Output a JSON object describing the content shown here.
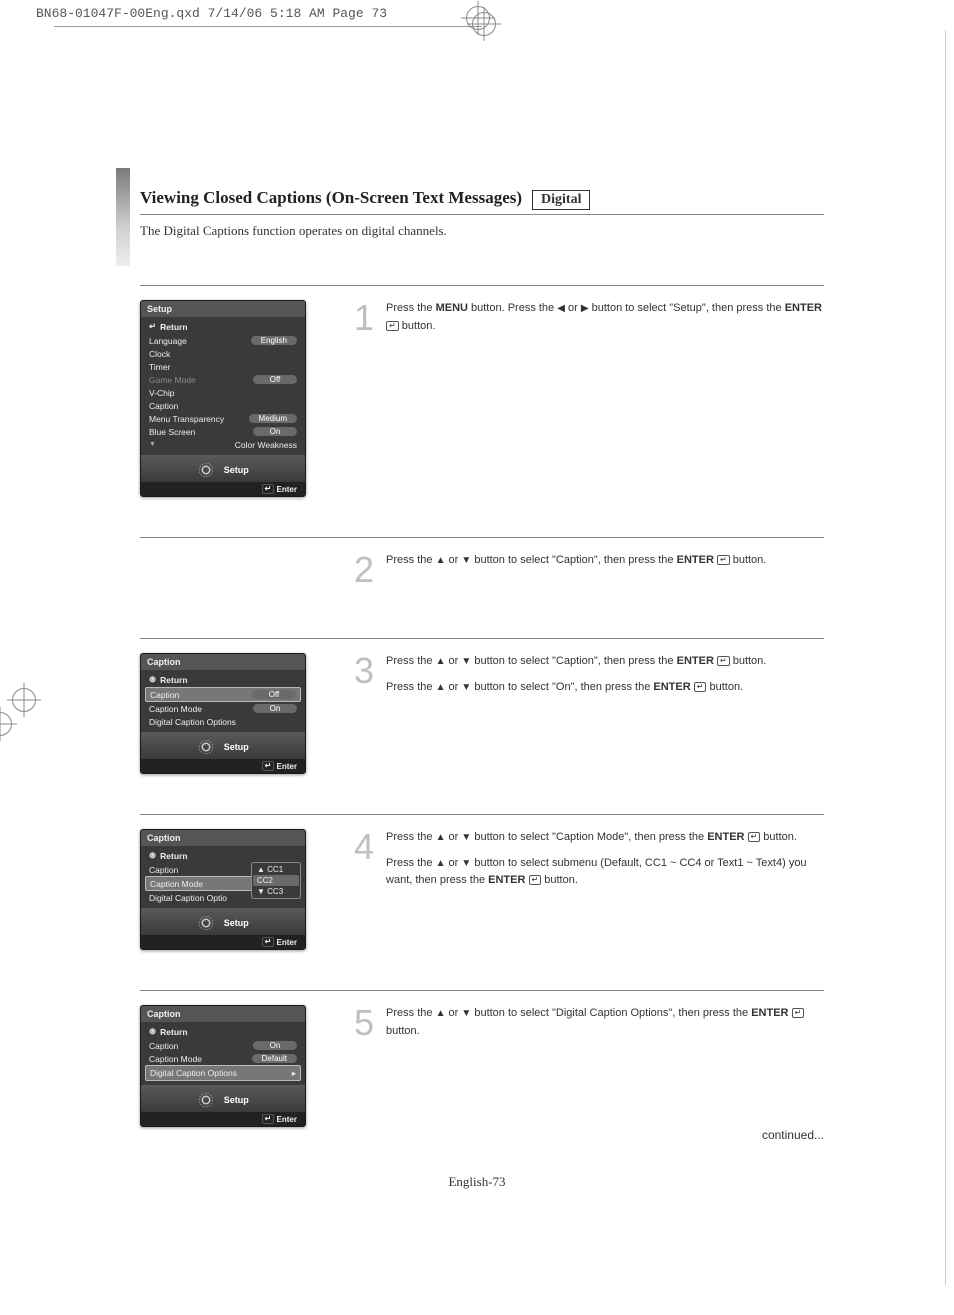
{
  "crop": {
    "header": "BN68-01047F-00Eng.qxd  7/14/06  5:18 AM  Page 73"
  },
  "title": {
    "main": "Viewing Closed Captions (On-Screen Text Messages)",
    "badge": "Digital",
    "sub": "The Digital Captions function operates on digital channels."
  },
  "osd1": {
    "title": "Setup",
    "return": "Return",
    "rows": [
      {
        "label": "Language",
        "value": "English",
        "pill": true
      },
      {
        "label": "Clock",
        "value": ""
      },
      {
        "label": "Timer",
        "value": ""
      },
      {
        "label": "Game Mode",
        "value": "Off",
        "pill": true,
        "dim": true
      },
      {
        "label": "V-Chip",
        "value": ""
      },
      {
        "label": "Caption",
        "value": ""
      },
      {
        "label": "Menu Transparency",
        "value": "Medium",
        "pill": true
      },
      {
        "label": "Blue Screen",
        "value": "On",
        "pill": true
      },
      {
        "label": "Color Weakness",
        "value": "",
        "more": true
      }
    ],
    "footer": "Setup",
    "enter": "Enter"
  },
  "osd2": {
    "title": "Caption",
    "return": "Return",
    "rows": [
      {
        "label": "Caption",
        "value": "Off",
        "pill": true,
        "highlight": true
      },
      {
        "label": "Caption Mode",
        "value": "On",
        "pill": true
      },
      {
        "label": "Digital Caption Options",
        "value": ""
      }
    ],
    "footer": "Setup",
    "enter": "Enter"
  },
  "osd3": {
    "title": "Caption",
    "return": "Return",
    "rows": [
      {
        "label": "Caption",
        "value": ""
      },
      {
        "label": "Caption Mode",
        "value": "",
        "highlight": true
      },
      {
        "label": "Digital Caption Optio",
        "value": ""
      }
    ],
    "dropdown": [
      "▲ CC1",
      "CC2",
      "▼ CC3"
    ],
    "dropdown_sel": 1,
    "footer": "Setup",
    "enter": "Enter"
  },
  "osd4": {
    "title": "Caption",
    "return": "Return",
    "rows": [
      {
        "label": "Caption",
        "value": "On",
        "pill": true
      },
      {
        "label": "Caption Mode",
        "value": "Default",
        "pill": true
      },
      {
        "label": "Digital Caption Options",
        "value": "▸",
        "highlight": true
      }
    ],
    "footer": "Setup",
    "enter": "Enter"
  },
  "steps": {
    "s1": {
      "n": "1",
      "t1a": "Press the ",
      "t1b": "MENU",
      "t1c": " button. Press the ",
      "t1d": " or ",
      "t1e": " button to select \"Setup\", then press  the ",
      "t1f": "ENTER",
      "t1g": " button."
    },
    "s2": {
      "n": "2",
      "t1a": "Press the ",
      "t1b": " or ",
      "t1c": " button to select \"Caption\", then press the ",
      "t1d": "ENTER",
      "t1e": " button."
    },
    "s3": {
      "n": "3",
      "t1a": "Press the ",
      "t1b": " or ",
      "t1c": " button to select \"Caption\", then press the ",
      "t1d": "ENTER",
      "t1e": " button.",
      "t2a": "Press the ",
      "t2b": " or ",
      "t2c": " button to select \"On\", then press the ",
      "t2d": "ENTER",
      "t2e": " button."
    },
    "s4": {
      "n": "4",
      "t1a": "Press the ",
      "t1b": " or ",
      "t1c": "  button to select \"Caption Mode\", then press the ",
      "t1d": "ENTER",
      "t1e": " button.",
      "t2a": "Press the ",
      "t2b": " or ",
      "t2c": " button to select submenu (Default, CC1 ~ CC4 or Text1 ~ Text4) you want, then press the ",
      "t2d": "ENTER",
      "t2e": " button."
    },
    "s5": {
      "n": "5",
      "t1a": "Press the ",
      "t1b": " or ",
      "t1c": " button to select \"Digital Caption Options\", then press the ",
      "t1d": "ENTER",
      "t1e": " button."
    }
  },
  "continued": "continued...",
  "pagefoot": "English-73"
}
